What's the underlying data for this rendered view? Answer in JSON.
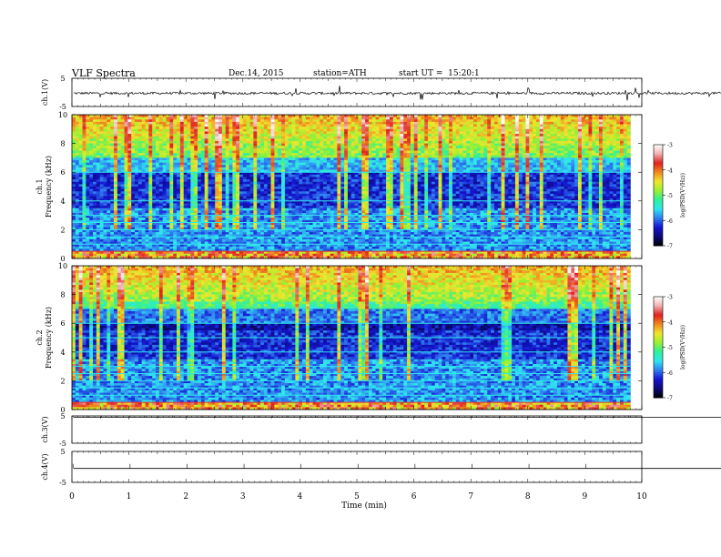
{
  "header": {
    "title": "VLF Spectra",
    "date": "Dec.14, 2015",
    "station": "station=ATH",
    "start": "start UT =  15:20:1"
  },
  "colorbar": {
    "label": "log(PSD(V²/Hz))",
    "ticks": [
      "-3",
      "-4",
      "-5",
      "-6",
      "-7"
    ],
    "colormap": [
      "#000000",
      "#0a0a7a",
      "#1414d0",
      "#2f7ef0",
      "#2fe6f0",
      "#2ff09a",
      "#9af02f",
      "#f0e62f",
      "#f08a1e",
      "#e02020",
      "#f0b0b0",
      "#ffffff"
    ]
  },
  "chart_data": [
    {
      "type": "line",
      "panel": "ch1-timeseries",
      "ylabel": "ch.1(V)",
      "ylim": [
        -5,
        5
      ],
      "yticks": [
        "5",
        "-5"
      ],
      "description_values": {
        "baseline": -0.3,
        "noise_amplitude": 0.6,
        "spike_max": 2.5
      },
      "color": "#000000"
    },
    {
      "type": "heatmap",
      "panel": "ch1-spectrogram",
      "ylabel_channel": "ch.1",
      "ylabel": "Frequency (kHz)",
      "ylim": [
        0,
        10
      ],
      "yticks": [
        "0",
        "2",
        "4",
        "6",
        "8",
        "10"
      ],
      "xlim": [
        0,
        10
      ],
      "zlim": [
        -7,
        -3
      ],
      "zlabel": "log(PSD(V²/Hz))",
      "persistent_lines_khz": [
        0.5,
        1.0,
        1.5,
        2.0,
        2.5,
        3.0,
        4.0,
        6.0
      ],
      "data_end_min": 9.8
    },
    {
      "type": "heatmap",
      "panel": "ch2-spectrogram",
      "ylabel_channel": "ch.2",
      "ylabel": "Frequency (kHz)",
      "ylim": [
        0,
        10
      ],
      "yticks": [
        "0",
        "2",
        "4",
        "6",
        "8",
        "10"
      ],
      "xlim": [
        0,
        10
      ],
      "zlim": [
        -7,
        -3
      ],
      "zlabel": "log(PSD(V²/Hz))",
      "persistent_lines_khz": [
        0.5,
        1.0,
        1.5,
        2.0,
        2.5,
        3.0,
        4.0,
        5.0,
        6.0
      ],
      "data_end_min": 9.8
    },
    {
      "type": "line",
      "panel": "ch3-timeseries",
      "ylabel": "ch.3(V)",
      "ylim": [
        -5,
        5
      ],
      "yticks": [
        "5",
        "-5"
      ],
      "description_values": {
        "baseline": 4.5
      },
      "color": "#000000"
    },
    {
      "type": "line",
      "panel": "ch4-timeseries",
      "ylabel": "ch.4(V)",
      "ylim": [
        -5,
        5
      ],
      "yticks": [
        "5",
        "-5"
      ],
      "description_values": {
        "baseline": -0.5
      },
      "color": "#000000"
    }
  ],
  "xaxis": {
    "label": "Time (min)",
    "ticks": [
      "0",
      "1",
      "2",
      "3",
      "4",
      "5",
      "6",
      "7",
      "8",
      "9",
      "10"
    ],
    "xlim": [
      0,
      10
    ]
  }
}
